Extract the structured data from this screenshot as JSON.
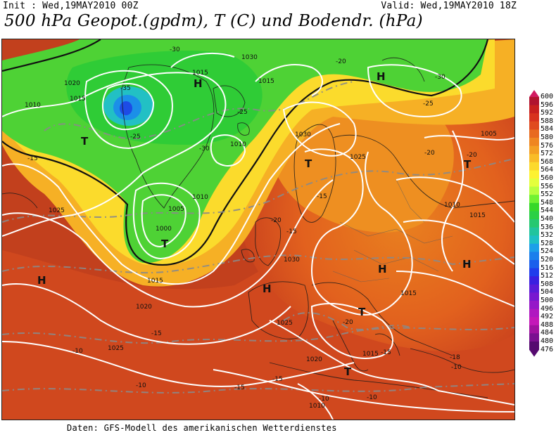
{
  "header": {
    "init": "Init : Wed,19MAY2010 00Z",
    "valid": "Valid: Wed,19MAY2010 18Z",
    "title": "500 hPa Geopot.(gpdm), T (C) und Bodendr. (hPa)"
  },
  "footer": {
    "credit": "Daten: GFS-Modell des amerikanischen Wetterdienstes"
  },
  "legend": {
    "levels": [
      "600",
      "596",
      "592",
      "588",
      "584",
      "580",
      "576",
      "572",
      "568",
      "564",
      "560",
      "556",
      "552",
      "548",
      "544",
      "540",
      "536",
      "532",
      "528",
      "524",
      "520",
      "516",
      "512",
      "508",
      "504",
      "500",
      "496",
      "492",
      "488",
      "484",
      "480",
      "476"
    ],
    "colors": [
      "#d21b62",
      "#b0132f",
      "#c8201f",
      "#d8321e",
      "#e04a1e",
      "#e86a1f",
      "#ef8620",
      "#f4a023",
      "#f9bc27",
      "#fcd92c",
      "#fdf231",
      "#e4ff3c",
      "#b8ff3e",
      "#72f232",
      "#37d829",
      "#2ad045",
      "#25c871",
      "#20c49e",
      "#1dbfc4",
      "#1b9fe8",
      "#1a7fec",
      "#1a5fec",
      "#203cec",
      "#3a1fe0",
      "#5a1bd8",
      "#7818d0",
      "#9518c8",
      "#b018c0",
      "#c418b8",
      "#a012a0",
      "#7a1090",
      "#560a70"
    ]
  },
  "pressure_centers": [
    {
      "label": "H",
      "id": "h-greenland-n"
    },
    {
      "label": "T",
      "id": "t-greenland-w"
    },
    {
      "label": "H",
      "id": "h-atlantic-w"
    },
    {
      "label": "H",
      "id": "h-iberia"
    },
    {
      "label": "T",
      "id": "t-italy"
    },
    {
      "label": "H",
      "id": "h-scandinavia"
    },
    {
      "label": "H",
      "id": "h-russia"
    },
    {
      "label": "T",
      "id": "t-iceland"
    },
    {
      "label": "T",
      "id": "t-uk"
    },
    {
      "label": "H",
      "id": "h-balkan"
    },
    {
      "label": "T",
      "id": "t-east"
    },
    {
      "label": "T",
      "id": "t-med"
    }
  ],
  "isobar_labels": [
    "1010",
    "1015",
    "1020",
    "1025",
    "1030",
    "1005",
    "1000",
    "1010",
    "1015",
    "1020",
    "1025",
    "1030",
    "1015",
    "1015",
    "1010",
    "1015",
    "1020",
    "1025",
    "1030",
    "1025",
    "1015",
    "1010",
    "1005",
    "1015",
    "1010"
  ],
  "temp_labels": [
    "-30",
    "-35",
    "-25",
    "-30",
    "-25",
    "-20",
    "-15",
    "-20",
    "-25",
    "-30",
    "-20",
    "-15",
    "-15",
    "-10",
    "-10",
    "-10",
    "-15",
    "-15",
    "-15",
    "-10",
    "-20",
    "-20",
    "-18",
    "-10",
    "-15"
  ]
}
